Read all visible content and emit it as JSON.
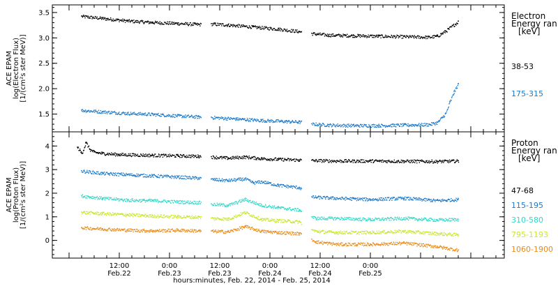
{
  "chart_data": [
    {
      "type": "scatter",
      "panel": "electron",
      "ylabel_lines": [
        "ACE EPAM",
        "log(Electron Flux)",
        "[1/(cm²s ster MeV)]"
      ],
      "legend_title_lines": [
        "Electron",
        "Energy ran",
        "[keV]"
      ],
      "ylim": [
        1.15,
        3.65
      ],
      "yticks": [
        1.5,
        2.0,
        2.5,
        3.0,
        3.5
      ],
      "ytick_labels": [
        "1.5",
        "2.0",
        "2.5",
        "3.0",
        "3.5"
      ],
      "x_unit": "hours since 2014-02-22 00:00 UT",
      "xlim": [
        -4.0,
        104.0
      ],
      "gaps": [
        [
          31.5,
          34.0
        ],
        [
          55.5,
          58.0
        ]
      ],
      "series": [
        {
          "name": "38-53",
          "color": "#000000",
          "x": [
            3,
            8,
            14,
            20,
            26,
            31,
            34,
            38,
            44,
            50,
            55,
            58,
            62,
            68,
            74,
            80,
            86,
            88,
            90,
            93
          ],
          "y": [
            3.43,
            3.39,
            3.34,
            3.31,
            3.29,
            3.27,
            3.28,
            3.26,
            3.22,
            3.18,
            3.13,
            3.09,
            3.06,
            3.05,
            3.04,
            3.03,
            3.02,
            3.04,
            3.14,
            3.33
          ]
        },
        {
          "name": "175-315",
          "color": "#1a78c8",
          "x": [
            3,
            8,
            14,
            20,
            26,
            31,
            34,
            40,
            46,
            52,
            55,
            58,
            62,
            68,
            74,
            80,
            86,
            88,
            90,
            91,
            92,
            93
          ],
          "y": [
            1.58,
            1.55,
            1.52,
            1.5,
            1.47,
            1.45,
            1.44,
            1.41,
            1.38,
            1.36,
            1.35,
            1.31,
            1.29,
            1.28,
            1.28,
            1.29,
            1.3,
            1.34,
            1.52,
            1.75,
            1.95,
            2.1
          ]
        }
      ]
    },
    {
      "type": "scatter",
      "panel": "proton",
      "ylabel_lines": [
        "ACE EPAM",
        "log(Proton Flux)",
        "[1/(cm²s ster MeV)]"
      ],
      "legend_title_lines": [
        "Proton",
        "Energy ran",
        "[keV]"
      ],
      "ylim": [
        -0.75,
        4.6
      ],
      "yticks": [
        0,
        1,
        2,
        3,
        4
      ],
      "ytick_labels": [
        "0",
        "1",
        "2",
        "3",
        "4"
      ],
      "x_unit": "hours since 2014-02-22 00:00 UT",
      "xlim": [
        -4.0,
        104.0
      ],
      "gaps": [
        [
          31.5,
          34.0
        ],
        [
          55.5,
          58.0
        ]
      ],
      "xticks": [
        12,
        24,
        36,
        48,
        60,
        72,
        84
      ],
      "xtick_labels": [
        "12:00",
        "0:00",
        "12:00",
        "0:00",
        "12:00",
        "0:00"
      ],
      "xtick_label_hours": [
        12,
        24,
        36,
        48,
        60,
        72
      ],
      "day_labels": [
        "Feb.22",
        "Feb.23",
        "Feb.23",
        "Feb.24",
        "Feb.24",
        "Feb.25"
      ],
      "xlabel": "hours:minutes, Feb. 22, 2014 - Feb. 25, 2014",
      "series": [
        {
          "name": "47-68",
          "color": "#000000",
          "x": [
            2,
            3,
            4,
            5,
            6,
            8,
            12,
            20,
            26,
            31,
            34,
            38,
            42,
            46,
            50,
            55,
            58,
            64,
            72,
            80,
            88,
            93
          ],
          "y": [
            3.95,
            3.7,
            4.15,
            3.85,
            3.75,
            3.7,
            3.65,
            3.62,
            3.6,
            3.58,
            3.55,
            3.5,
            3.55,
            3.48,
            3.45,
            3.42,
            3.4,
            3.38,
            3.38,
            3.37,
            3.36,
            3.38
          ]
        },
        {
          "name": "115-195",
          "color": "#1a78c8",
          "x": [
            3,
            8,
            14,
            20,
            26,
            31,
            34,
            38,
            42,
            44,
            46,
            50,
            55,
            58,
            64,
            72,
            80,
            88,
            93
          ],
          "y": [
            2.95,
            2.85,
            2.8,
            2.75,
            2.7,
            2.65,
            2.6,
            2.55,
            2.62,
            2.45,
            2.5,
            2.35,
            2.25,
            1.85,
            1.8,
            1.75,
            1.8,
            1.7,
            1.75
          ]
        },
        {
          "name": "310-580",
          "color": "#30d8c8",
          "x": [
            3,
            8,
            14,
            20,
            26,
            31,
            34,
            38,
            42,
            46,
            50,
            55,
            58,
            59,
            64,
            72,
            80,
            88,
            93
          ],
          "y": [
            1.9,
            1.8,
            1.72,
            1.7,
            1.65,
            1.62,
            1.55,
            1.5,
            1.75,
            1.5,
            1.4,
            1.3,
            1.0,
            0.95,
            0.95,
            0.9,
            0.95,
            0.88,
            0.9
          ]
        },
        {
          "name": "795-1193",
          "color": "#c8e630",
          "x": [
            3,
            8,
            14,
            20,
            26,
            31,
            34,
            38,
            42,
            46,
            50,
            55,
            58,
            59,
            64,
            72,
            80,
            88,
            93
          ],
          "y": [
            1.2,
            1.15,
            1.1,
            1.05,
            1.02,
            1.0,
            0.95,
            0.92,
            1.2,
            0.9,
            0.85,
            0.8,
            0.45,
            0.4,
            0.35,
            0.35,
            0.4,
            0.3,
            0.25
          ]
        },
        {
          "name": "1060-1900",
          "color": "#e88a18",
          "x": [
            3,
            8,
            14,
            20,
            26,
            31,
            34,
            38,
            42,
            46,
            50,
            55,
            58,
            59,
            64,
            72,
            80,
            88,
            93
          ],
          "y": [
            0.55,
            0.5,
            0.45,
            0.42,
            0.45,
            0.42,
            0.4,
            0.38,
            0.6,
            0.4,
            0.35,
            0.3,
            0.05,
            -0.05,
            -0.15,
            -0.15,
            -0.1,
            -0.25,
            -0.4
          ]
        }
      ]
    }
  ]
}
